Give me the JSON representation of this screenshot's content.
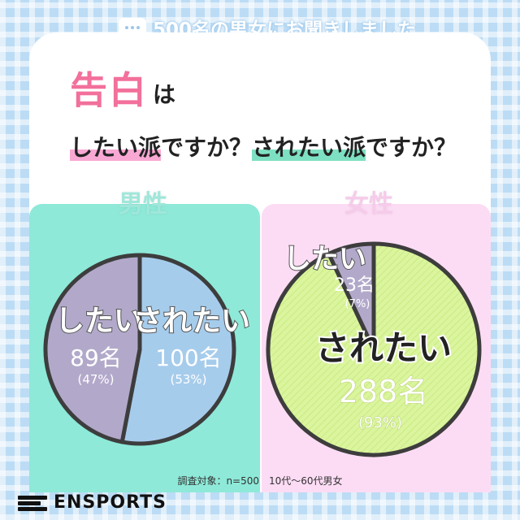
{
  "header": {
    "text": "500名の男女にお聞きしました",
    "icon": "speech-bubble-icon"
  },
  "question": {
    "highlight": "告白",
    "particle": "は",
    "line2_a": "したい派",
    "line2_b": "ですか？",
    "line2_c": "されたい派",
    "line2_d": "ですか？"
  },
  "survey_note": "調査対象：n=500　10代〜60代男女",
  "brand": {
    "name": "ENSPORTS"
  },
  "colors": {
    "male_panel": "#8ee9d8",
    "female_panel": "#fcdcf4",
    "shitai": "#b2a9ca",
    "saretai_male": "#a6ccec",
    "saretai_female": "#dbf59e",
    "title_pink": "#f2709b"
  },
  "chart_data": [
    {
      "type": "pie",
      "title": "男性",
      "slices": [
        {
          "label": "されたい",
          "count": "100名",
          "percent_label": "(53%)",
          "value": 53
        },
        {
          "label": "したい",
          "count": "89名",
          "percent_label": "(47%)",
          "value": 47
        }
      ]
    },
    {
      "type": "pie",
      "title": "女性",
      "slices": [
        {
          "label": "されたい",
          "count": "288名",
          "percent_label": "(93%)",
          "value": 93
        },
        {
          "label": "したい",
          "count": "23名",
          "percent_label": "(7%)",
          "value": 7
        }
      ]
    }
  ]
}
